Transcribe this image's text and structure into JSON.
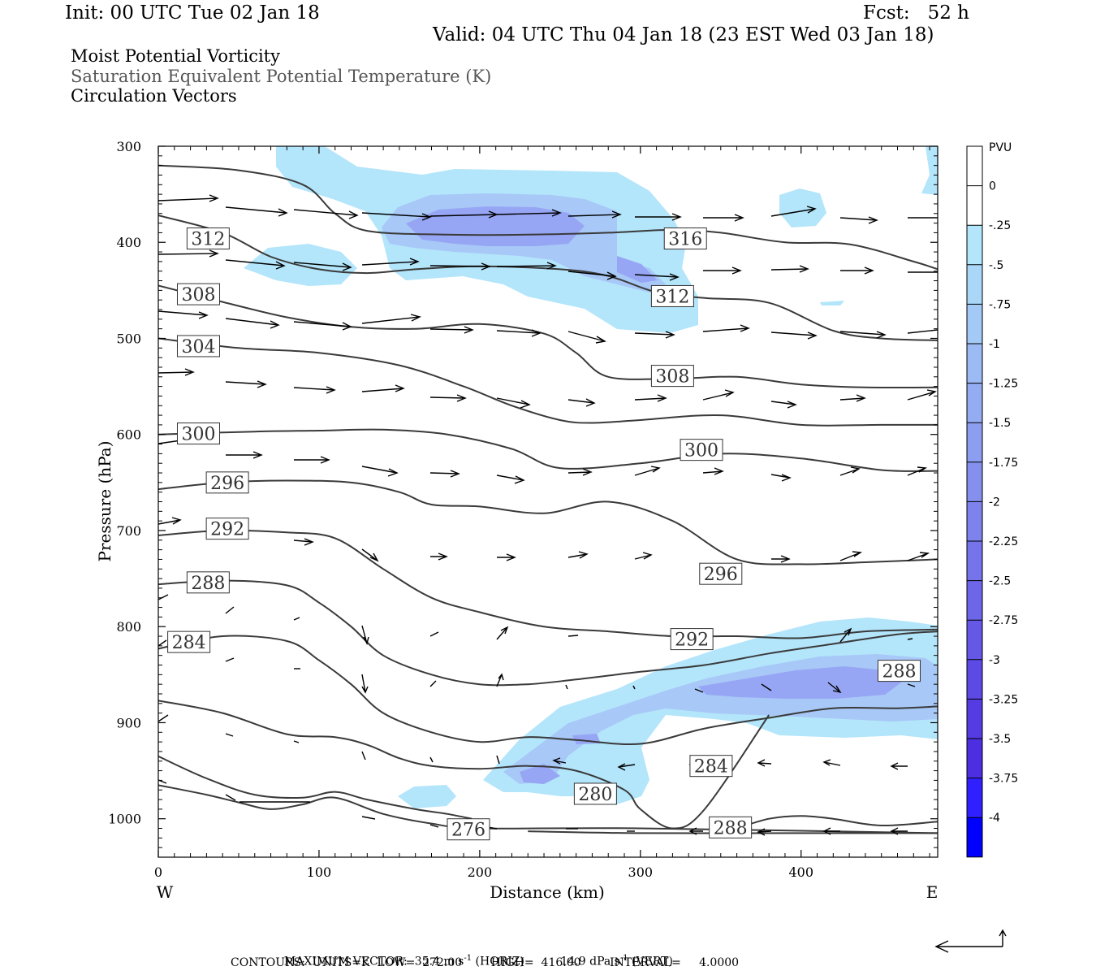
{
  "header": {
    "init": "Init: 00 UTC Tue 02 Jan 18",
    "fcst": "Fcst:   52 h",
    "valid": "Valid: 04 UTC Thu 04 Jan 18 (23 EST Wed 03 Jan 18)",
    "field1": "Moist Potential Vorticity",
    "field2": "Saturation Equivalent Potential Temperature (K)",
    "field3": "Circulation Vectors"
  },
  "footer": {
    "maxvec_label": "MAXIMUM VECTOR:",
    "horiz_value": "35.4 m s",
    "horiz_unit": "(HORIZ)",
    "vert_value": "14.9 dPa s",
    "vert_unit": "(VERT)",
    "exponent": "-1",
    "contours_line": "CONTOURS:  UNITS=K  LOW=  272.00        HIGH=  416.00        INTERVAL=     4.0000"
  },
  "colors": {
    "pv_fill_light": "#b3e5fb",
    "pv_fill_mid": "#a8c8f7",
    "pv_fill_dark": "#97a6f4",
    "contour": "#3a3a3a"
  },
  "chart_data": {
    "type": "cross-section",
    "xlabel": "Distance (km)",
    "ylabel": "Pressure (hPa)",
    "xlim": [
      0,
      485
    ],
    "ylim": [
      1040,
      300
    ],
    "x_ticks": [
      0,
      100,
      200,
      300,
      400
    ],
    "y_ticks": [
      300,
      400,
      500,
      600,
      700,
      800,
      900,
      1000
    ],
    "x_end_labels": {
      "left": "W",
      "right": "E"
    },
    "colorbar": {
      "title": "PVU",
      "levels": [
        0,
        -0.25,
        -0.5,
        -0.75,
        -1,
        -1.25,
        -1.5,
        -1.75,
        -2,
        -2.25,
        -2.5,
        -2.75,
        -3,
        -3.25,
        -3.5,
        -3.75,
        -4
      ],
      "labels": [
        "0",
        "-.25",
        "-.5",
        "-.75",
        "-1",
        "-1.25",
        "-1.5",
        "-1.75",
        "-2",
        "-2.25",
        "-2.5",
        "-2.75",
        "-3",
        "-3.25",
        "-3.5",
        "-3.75",
        "-4"
      ],
      "colors": [
        "#ffffff",
        "#ffffff",
        "#b3e5fb",
        "#aad7f8",
        "#a3c9f6",
        "#9cbaf4",
        "#94acf2",
        "#8c9ef0",
        "#8590ee",
        "#7d82ec",
        "#7574ea",
        "#6d66e8",
        "#6558e6",
        "#5d4ae4",
        "#553ce2",
        "#4d2ee0",
        "#3020ff",
        "#0000ff"
      ]
    },
    "contour_labels": [
      {
        "text": "312",
        "x": 31,
        "p": 396
      },
      {
        "text": "316",
        "x": 328,
        "p": 396
      },
      {
        "text": "308",
        "x": 25,
        "p": 454
      },
      {
        "text": "312",
        "x": 320,
        "p": 456
      },
      {
        "text": "304",
        "x": 25,
        "p": 508
      },
      {
        "text": "308",
        "x": 320,
        "p": 539
      },
      {
        "text": "300",
        "x": 25,
        "p": 599
      },
      {
        "text": "300",
        "x": 338,
        "p": 616
      },
      {
        "text": "296",
        "x": 43,
        "p": 650
      },
      {
        "text": "292",
        "x": 43,
        "p": 698
      },
      {
        "text": "296",
        "x": 350,
        "p": 745
      },
      {
        "text": "288",
        "x": 31,
        "p": 754
      },
      {
        "text": "292",
        "x": 332,
        "p": 813
      },
      {
        "text": "284",
        "x": 19,
        "p": 816
      },
      {
        "text": "288",
        "x": 461,
        "p": 846
      },
      {
        "text": "284",
        "x": 344,
        "p": 945
      },
      {
        "text": "280",
        "x": 272,
        "p": 974
      },
      {
        "text": "276",
        "x": 193,
        "p": 1011
      },
      {
        "text": "288",
        "x": 356,
        "p": 1009
      }
    ],
    "contours": [
      {
        "level": 316,
        "x": [
          0,
          50,
          90,
          110,
          130,
          180,
          230,
          280,
          320,
          350,
          390,
          430,
          470,
          485
        ],
        "p": [
          320,
          325,
          340,
          370,
          388,
          392,
          392,
          390,
          387,
          390,
          400,
          402,
          420,
          428
        ]
      },
      {
        "level": 312,
        "x": [
          0,
          40,
          70,
          100,
          130,
          160,
          200,
          250,
          280,
          310,
          340,
          380,
          420,
          450,
          485
        ],
        "p": [
          372,
          390,
          415,
          428,
          432,
          428,
          425,
          428,
          435,
          452,
          458,
          463,
          492,
          500,
          502
        ]
      },
      {
        "level": 308,
        "x": [
          0,
          40,
          80,
          120,
          160,
          200,
          240,
          260,
          280,
          320,
          360,
          400,
          440,
          485
        ],
        "p": [
          445,
          462,
          478,
          488,
          490,
          485,
          495,
          515,
          540,
          542,
          540,
          548,
          551,
          551
        ]
      },
      {
        "level": 304,
        "x": [
          0,
          50,
          100,
          150,
          190,
          220,
          250,
          270,
          300,
          350,
          400,
          450,
          485
        ],
        "p": [
          500,
          510,
          515,
          528,
          550,
          570,
          585,
          588,
          585,
          580,
          590,
          590,
          590
        ]
      },
      {
        "level": 300,
        "x": [
          0,
          60,
          100,
          140,
          180,
          220,
          250,
          300,
          350,
          400,
          450,
          485
        ],
        "p": [
          600,
          597,
          596,
          595,
          600,
          615,
          635,
          630,
          620,
          625,
          637,
          638
        ]
      },
      {
        "level": 296,
        "x": [
          0,
          40,
          80,
          120,
          150,
          170,
          200,
          240,
          280,
          320,
          360,
          400,
          440,
          485
        ],
        "p": [
          657,
          650,
          648,
          650,
          660,
          673,
          675,
          682,
          670,
          690,
          730,
          735,
          733,
          730
        ]
      },
      {
        "level": 292,
        "x": [
          0,
          40,
          80,
          110,
          140,
          170,
          200,
          240,
          280,
          320,
          360,
          400,
          440,
          485
        ],
        "p": [
          705,
          700,
          702,
          708,
          740,
          770,
          785,
          800,
          805,
          810,
          810,
          812,
          805,
          803
        ]
      },
      {
        "level": 288,
        "x": [
          0,
          40,
          80,
          100,
          120,
          140,
          170,
          200,
          230,
          260,
          300,
          340,
          380,
          420,
          460,
          485
        ],
        "p": [
          756,
          752,
          757,
          775,
          800,
          830,
          850,
          860,
          860,
          855,
          847,
          840,
          828,
          818,
          808,
          805
        ]
      },
      {
        "level": 284,
        "x": [
          0,
          40,
          80,
          100,
          120,
          140,
          170,
          200,
          230,
          260,
          300,
          340,
          380,
          420,
          460,
          485
        ],
        "p": [
          823,
          810,
          815,
          835,
          860,
          890,
          910,
          920,
          915,
          918,
          922,
          906,
          895,
          885,
          885,
          883
        ]
      },
      {
        "level": 280,
        "x": [
          0,
          40,
          80,
          110,
          130,
          150,
          170,
          200,
          230,
          260,
          290,
          300,
          320,
          340,
          380
        ],
        "p": [
          877,
          890,
          912,
          915,
          923,
          937,
          945,
          948,
          945,
          950,
          970,
          990,
          1010,
          990,
          892
        ]
      },
      {
        "level": 276,
        "x": [
          0,
          30,
          60,
          90,
          110,
          130,
          160,
          180,
          195
        ],
        "p": [
          935,
          958,
          975,
          978,
          972,
          980,
          990,
          995,
          1000
        ]
      },
      {
        "level": 272,
        "x": [
          0,
          30,
          50,
          70,
          90,
          110,
          140,
          170,
          200,
          300,
          485
        ],
        "p": [
          965,
          975,
          983,
          990,
          985,
          978,
          995,
          1005,
          1010,
          1010,
          1015
        ]
      },
      {
        "level": 288,
        "x": [
          360,
          380,
          400,
          420,
          450,
          485
        ],
        "p": [
          1010,
          1000,
          997,
          1000,
          1007,
          1003
        ]
      },
      {
        "level": 276,
        "x": [
          230,
          300,
          400,
          485
        ],
        "p": [
          1013,
          1015,
          1015,
          1015
        ]
      }
    ]
  }
}
